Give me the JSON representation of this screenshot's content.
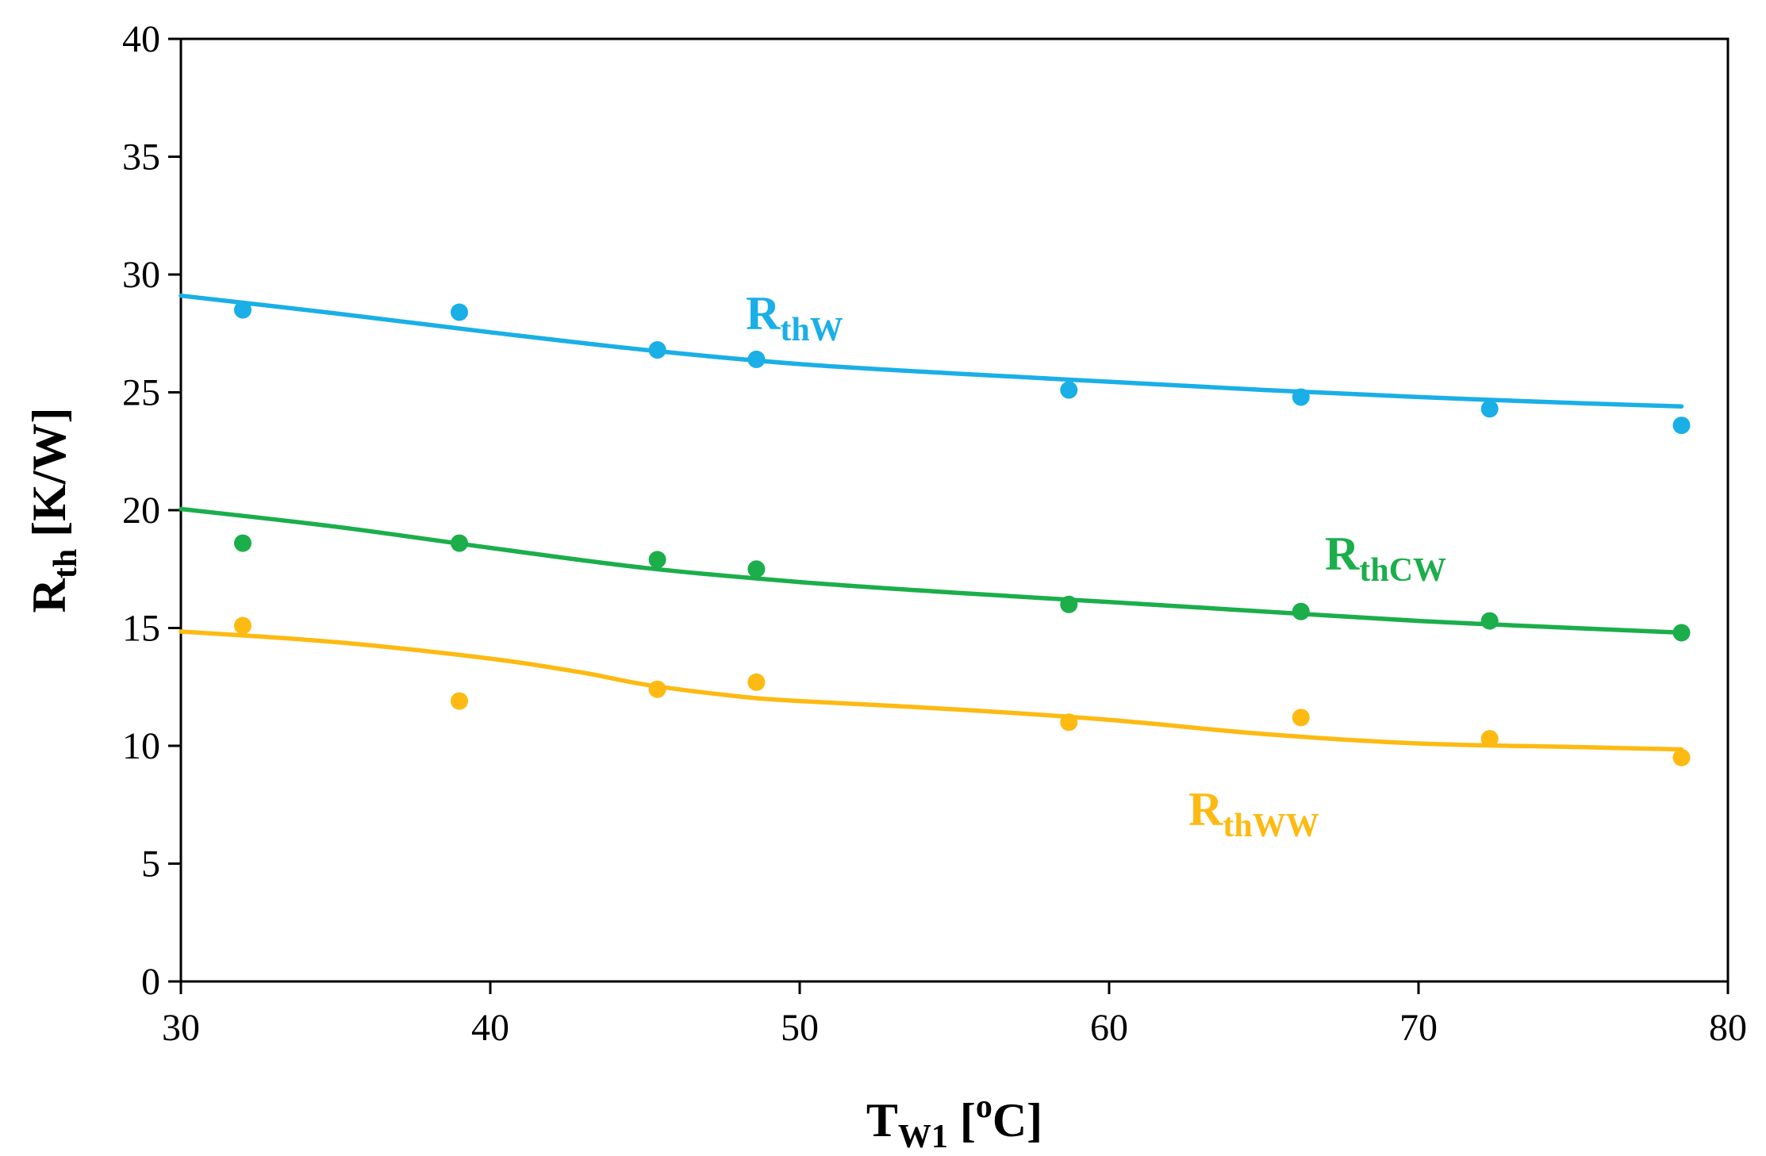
{
  "chart_data": {
    "type": "scatter",
    "title": "",
    "xlabel": {
      "main": "T",
      "sub": "W1",
      "rest": " [oC]",
      "sup": "o",
      "rest_after_sup": "C]"
    },
    "ylabel": {
      "main": "R",
      "sub": "th",
      "rest": " [K/W]"
    },
    "xlim": [
      30,
      80
    ],
    "ylim": [
      0,
      40
    ],
    "x_ticks": [
      "30",
      "40",
      "50",
      "60",
      "70",
      "80"
    ],
    "y_ticks": [
      "0",
      "5",
      "10",
      "15",
      "20",
      "25",
      "30",
      "35",
      "40"
    ],
    "grid": false,
    "legend": "inline-labels",
    "series": [
      {
        "name": "RthW",
        "label_main": "R",
        "label_sub": "thW",
        "color": "#1AAFE6",
        "points": [
          [
            32,
            28.5
          ],
          [
            39,
            28.4
          ],
          [
            45.4,
            26.8
          ],
          [
            48.6,
            26.4
          ],
          [
            58.7,
            25.1
          ],
          [
            66.2,
            24.8
          ],
          [
            72.3,
            24.3
          ],
          [
            78.5,
            23.6
          ]
        ],
        "trend": [
          [
            30,
            29.1
          ],
          [
            35,
            28.35
          ],
          [
            40,
            27.55
          ],
          [
            45,
            26.8
          ],
          [
            50,
            26.2
          ],
          [
            55,
            25.8
          ],
          [
            60,
            25.45
          ],
          [
            65,
            25.1
          ],
          [
            70,
            24.8
          ],
          [
            75,
            24.55
          ],
          [
            78.5,
            24.4
          ]
        ]
      },
      {
        "name": "RthCW",
        "label_main": "R",
        "label_sub": "thCW",
        "color": "#1BAE4B",
        "points": [
          [
            32,
            18.6
          ],
          [
            39,
            18.6
          ],
          [
            45.4,
            17.9
          ],
          [
            48.6,
            17.5
          ],
          [
            58.7,
            16.0
          ],
          [
            66.2,
            15.7
          ],
          [
            72.3,
            15.3
          ],
          [
            78.5,
            14.8
          ]
        ],
        "trend": [
          [
            30,
            20.05
          ],
          [
            35,
            19.3
          ],
          [
            40,
            18.4
          ],
          [
            45,
            17.55
          ],
          [
            50,
            16.95
          ],
          [
            55,
            16.5
          ],
          [
            60,
            16.1
          ],
          [
            65,
            15.7
          ],
          [
            70,
            15.3
          ],
          [
            75,
            15.0
          ],
          [
            78.5,
            14.8
          ]
        ]
      },
      {
        "name": "RthWW",
        "label_main": "R",
        "label_sub": "thWW",
        "color": "#FDBA12",
        "points": [
          [
            32,
            15.1
          ],
          [
            39,
            11.9
          ],
          [
            45.4,
            12.4
          ],
          [
            48.6,
            12.7
          ],
          [
            58.7,
            11.0
          ],
          [
            66.2,
            11.2
          ],
          [
            72.3,
            10.3
          ],
          [
            78.5,
            9.5
          ]
        ],
        "trend": [
          [
            30,
            14.85
          ],
          [
            35,
            14.4
          ],
          [
            40,
            13.7
          ],
          [
            43,
            13.1
          ],
          [
            45,
            12.6
          ],
          [
            48,
            12.1
          ],
          [
            50,
            11.9
          ],
          [
            55,
            11.55
          ],
          [
            60,
            11.1
          ],
          [
            65,
            10.5
          ],
          [
            70,
            10.1
          ],
          [
            75,
            9.95
          ],
          [
            78.5,
            9.85
          ]
        ]
      }
    ]
  }
}
